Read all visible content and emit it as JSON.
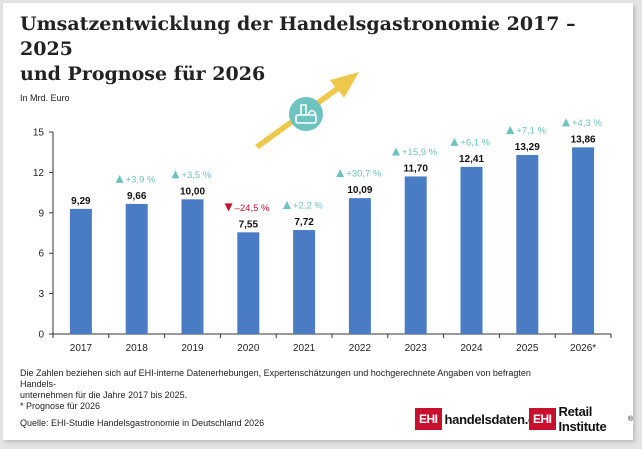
{
  "title_line1": "Umsatzentwicklung der Handelsgastronomie 2017 – 2025",
  "title_line2": "und Prognose für 2026",
  "footnote_line1": "Die Zahlen beziehen sich auf EHI-interne Datenerhebungen, Expertenschätzungen und hochgerechnete Angaben von befragten Handels-",
  "footnote_line2": "unternehmen für die Jahre 2017 bis 2025.",
  "footnote_line3": "* Prognose für 2026",
  "source": "Quelle: EHI-Studie Handelsgastronomie in Deutschland 2026",
  "logo1": {
    "box": "EHI",
    "text": "handelsdaten.de"
  },
  "logo2": {
    "box": "EHI",
    "text": "Retail Institute",
    "mark": "®"
  },
  "icon": "food-tray-icon",
  "colors": {
    "bar": "#4a7cc4",
    "up": "#6ec3c0",
    "down": "#c8102e",
    "arrow": "#eec84a",
    "circle": "#6ec3c0"
  },
  "chart_data": {
    "type": "bar",
    "ylabel": "In Mrd. Euro",
    "ylim": [
      0,
      15
    ],
    "yticks": [
      0,
      3,
      6,
      9,
      12,
      15
    ],
    "grid": false,
    "categories": [
      "2017",
      "2018",
      "2019",
      "2020",
      "2021",
      "2022",
      "2023",
      "2024",
      "2025",
      "2026*"
    ],
    "values": [
      9.29,
      9.66,
      10.0,
      7.55,
      7.72,
      10.09,
      11.7,
      12.41,
      13.29,
      13.86
    ],
    "value_labels": [
      "9,29",
      "9,66",
      "10,00",
      "7,55",
      "7,72",
      "10,09",
      "11,70",
      "12,41",
      "13,29",
      "13,86"
    ],
    "changes": [
      null,
      {
        "direction": "up",
        "text": "+3,9 %"
      },
      {
        "direction": "up",
        "text": "+3,5 %"
      },
      {
        "direction": "down",
        "text": "–24,5 %"
      },
      {
        "direction": "up",
        "text": "+2,2 %"
      },
      {
        "direction": "up",
        "text": "+30,7 %"
      },
      {
        "direction": "up",
        "text": "+15,9 %"
      },
      {
        "direction": "up",
        "text": "+6,1 %"
      },
      {
        "direction": "up",
        "text": "+7,1 %"
      },
      {
        "direction": "up",
        "text": "+4,3 %"
      }
    ]
  }
}
